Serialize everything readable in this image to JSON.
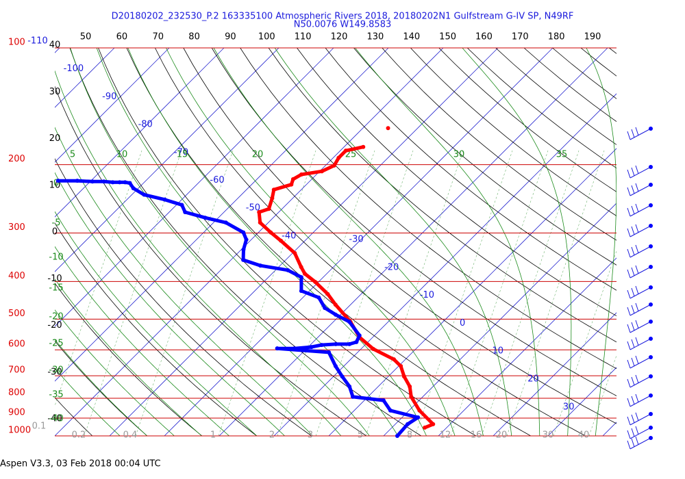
{
  "chart_data": {
    "type": "skewt",
    "title": "D20180202_232530_P.2 163335100 Atmospheric Rivers 2018, 20180202N1 Gulfstream G-IV SP, N49RF",
    "subtitle": "N50.0076 W149.8583",
    "footer": "Aspen V3.3, 03 Feb 2018  00:04 UTC",
    "log_y": true,
    "ylim": [
      1000,
      100
    ],
    "yticks": [
      100,
      200,
      300,
      400,
      500,
      600,
      700,
      800,
      900,
      1000
    ],
    "top_ticks": [
      50,
      60,
      70,
      80,
      90,
      100,
      110,
      120,
      130,
      140,
      150,
      160,
      170,
      180,
      190
    ],
    "left_temp_labels": [
      40,
      30,
      20,
      10,
      0,
      -10,
      -20,
      -30,
      -40
    ],
    "isotherm_labels_upper": [
      -110,
      -100,
      -90,
      -80,
      -70,
      -60,
      -50,
      -40
    ],
    "isotherm_labels_lower": [
      -30,
      -20,
      -10,
      0,
      10,
      20,
      30
    ],
    "moist_labels_top": [
      5,
      10,
      15,
      20,
      25,
      30,
      35
    ],
    "moist_labels_left": [
      0,
      -5,
      -10,
      -15,
      -20,
      -25,
      -30,
      -35,
      -40
    ],
    "mixing_ratio_labels": [
      0.1,
      0.2,
      0.4,
      1,
      2,
      3,
      5,
      8,
      12,
      16,
      20,
      30,
      40
    ],
    "series": [
      {
        "color": "#ff0000",
        "pressure": [
          161,
          null,
          180,
          184,
          192,
          201,
          208,
          212,
          218,
          225,
          232,
          244,
          260,
          265,
          282,
          299,
          314,
          338,
          367,
          382,
          401,
          431,
          459,
          508,
          557,
          597,
          635,
          661,
          703,
          746,
          793,
          860,
          933,
          952
        ],
        "values": [
          -55.4,
          null,
          -56.5,
          -59,
          -59,
          -58.4,
          -59.6,
          -62.75,
          -63.4,
          -62.75,
          -65,
          -63.75,
          -62.4,
          -63.6,
          -61.5,
          -57.75,
          -54.4,
          -49.6,
          -45.9,
          -44,
          -40.6,
          -36.1,
          -32.75,
          -26.9,
          -22.4,
          -17.75,
          -12.1,
          -9.6,
          -7.1,
          -4.25,
          -2.1,
          1.9,
          6.9,
          6
        ]
      },
      {
        "color": "#0000ff",
        "pressure": [
          220,
          220,
          221,
          221,
          222,
          222,
          222,
          223,
          230,
          239,
          246,
          254,
          265,
          274,
          282,
          299,
          312,
          331,
          352,
          364,
          374,
          390,
          423,
          440,
          468,
          487,
          508,
          551,
          573,
          580,
          580,
          583,
          590,
          595,
          595,
          609,
          661,
          703,
          746,
          793,
          810,
          860,
          896,
          933,
          1000
        ],
        "values": [
          -106,
          -102.5,
          -99.6,
          -97.5,
          -95.75,
          -94.5,
          -93.5,
          -92.5,
          -90.9,
          -87.75,
          -83.1,
          -79,
          -77.1,
          -72.4,
          -67.75,
          -62.75,
          -60.9,
          -59.6,
          -57.75,
          -53.6,
          -47.75,
          -44,
          -41.5,
          -37.1,
          -34.1,
          -30.9,
          -27.1,
          -22.75,
          -22.1,
          -23,
          -25.5,
          -27.9,
          -29.4,
          -32.25,
          -35.4,
          -25.25,
          -21.5,
          -18.4,
          -15.25,
          -12.75,
          -6.5,
          -3.4,
          2.9,
          2.25,
          2.5
        ]
      }
    ]
  }
}
